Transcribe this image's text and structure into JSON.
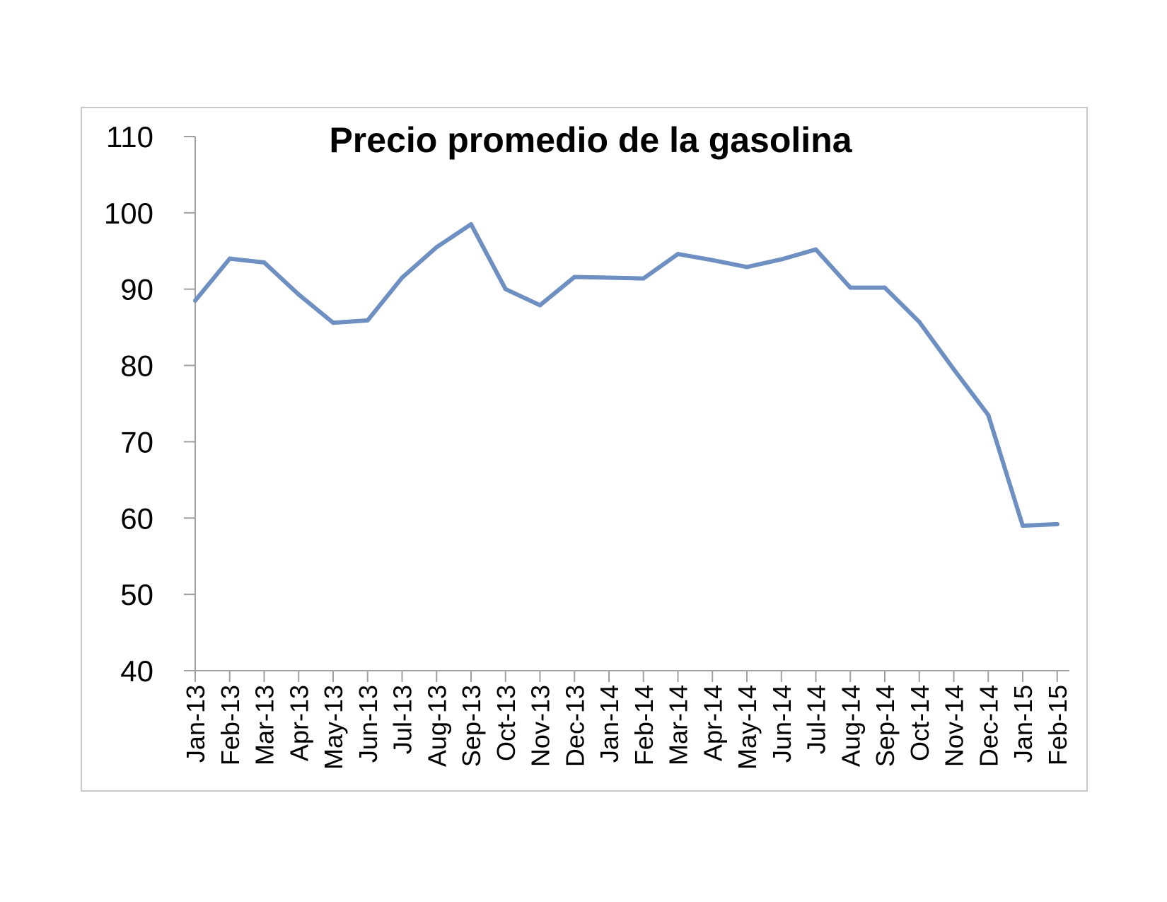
{
  "chart_data": {
    "type": "line",
    "title": "Precio promedio de la gasolina",
    "xlabel": "",
    "ylabel": "",
    "ylim": [
      40,
      110
    ],
    "yticks": [
      "40",
      "50",
      "60",
      "70",
      "80",
      "90",
      "100",
      "110"
    ],
    "categories": [
      "Jan-13",
      "Feb-13",
      "Mar-13",
      "Apr-13",
      "May-13",
      "Jun-13",
      "Jul-13",
      "Aug-13",
      "Sep-13",
      "Oct-13",
      "Nov-13",
      "Dec-13",
      "Jan-14",
      "Feb-14",
      "Mar-14",
      "Apr-14",
      "May-14",
      "Jun-14",
      "Jul-14",
      "Aug-14",
      "Sep-14",
      "Oct-14",
      "Nov-14",
      "Dec-14",
      "Jan-15",
      "Feb-15"
    ],
    "series": [
      {
        "values": [
          88.5,
          94.0,
          93.5,
          89.3,
          85.6,
          85.9,
          91.5,
          95.5,
          98.5,
          90.0,
          87.9,
          91.6,
          91.5,
          91.4,
          94.6,
          93.8,
          92.9,
          93.9,
          95.2,
          90.2,
          90.2,
          85.7,
          79.5,
          73.5,
          59.0,
          59.2
        ],
        "color": "#6e8fc2"
      }
    ],
    "grid": false,
    "legend": "none",
    "axis_color": "#a0a0a0"
  }
}
